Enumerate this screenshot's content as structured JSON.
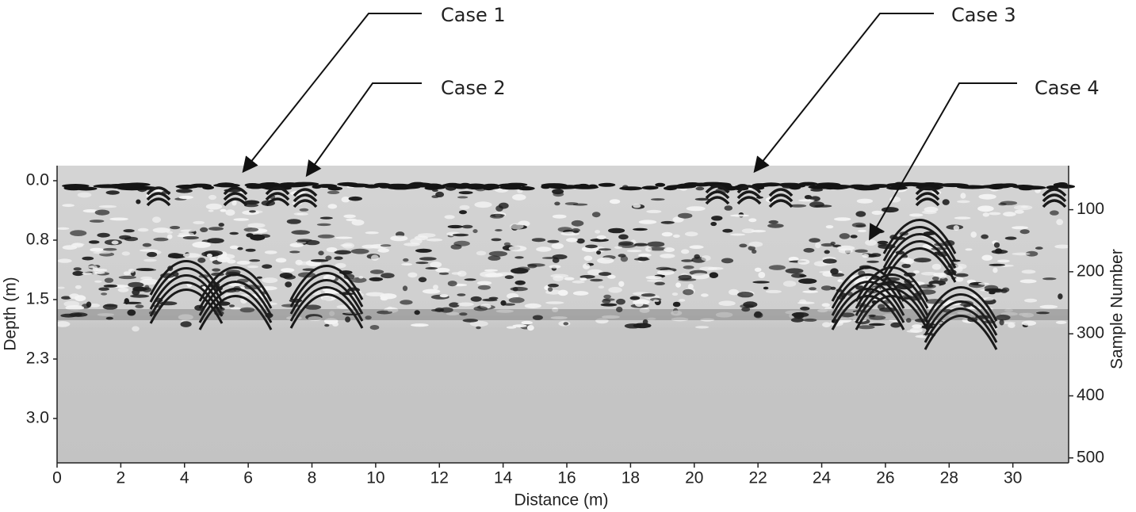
{
  "chart_data": {
    "type": "radargram",
    "xlabel": "Distance (m)",
    "ylabel": "Depth (m)",
    "y2label": "Sample Number",
    "xlim": [
      0,
      31.75
    ],
    "xticks": [
      0,
      2,
      4,
      6,
      8,
      10,
      12,
      14,
      16,
      18,
      20,
      22,
      24,
      26,
      28,
      30
    ],
    "ylim": [
      -0.19,
      3.56
    ],
    "y_inverted": true,
    "yticks": [
      {
        "value": 0,
        "label": "0.0"
      },
      {
        "value": 0.75,
        "label": "0.8"
      },
      {
        "value": 1.5,
        "label": "1.5"
      },
      {
        "value": 2.25,
        "label": "2.3"
      },
      {
        "value": 3.0,
        "label": "3.0"
      }
    ],
    "y2lim": [
      29,
      508
    ],
    "y2ticks": [
      100,
      200,
      300,
      400,
      500
    ],
    "annotations": [
      "Case 1",
      "Case 2",
      "Case 3",
      "Case 4"
    ]
  }
}
